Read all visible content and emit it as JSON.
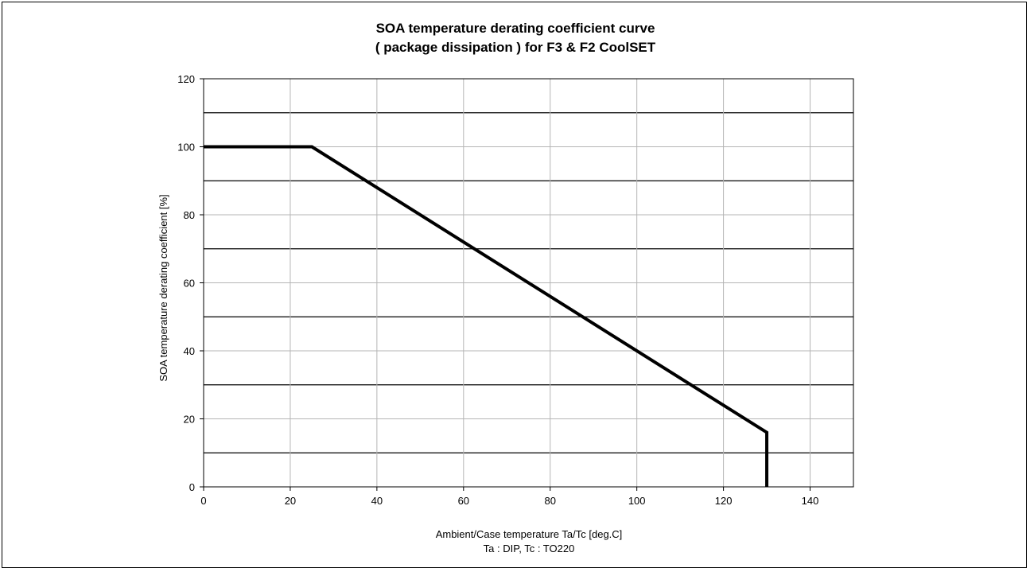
{
  "chart_data": {
    "type": "line",
    "title_line1": "SOA temperature derating coefficient curve",
    "title_line2": "( package dissipation ) for F3 & F2 CoolSET",
    "xlabel_line1": "Ambient/Case temperature Ta/Tc [deg.C]",
    "xlabel_line2": "Ta : DIP, Tc : TO220",
    "ylabel": "SOA temperature derating coefficient [%]",
    "xlim": [
      0,
      150
    ],
    "ylim": [
      0,
      120
    ],
    "x_ticks": [
      0,
      20,
      40,
      60,
      80,
      100,
      120,
      140
    ],
    "y_ticks": [
      0,
      20,
      40,
      60,
      80,
      100,
      120
    ],
    "minor_y_gridlines": [
      10,
      30,
      50,
      70,
      90,
      110
    ],
    "grid": true,
    "series": [
      {
        "x": [
          0,
          25,
          130,
          130
        ],
        "y": [
          100,
          100,
          16,
          0
        ]
      }
    ]
  }
}
